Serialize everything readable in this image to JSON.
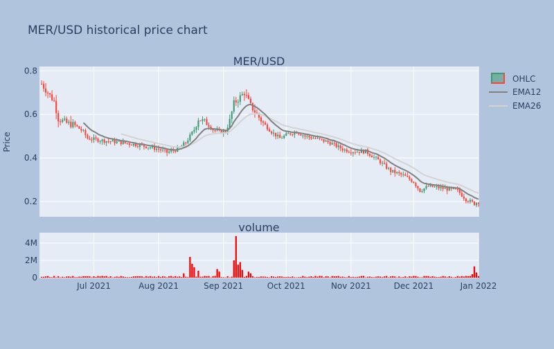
{
  "page": {
    "title": "MER/USD historical price chart"
  },
  "chart_data": [
    {
      "type": "candlestick",
      "title": "MER/USD",
      "ylabel": "Price",
      "xlabel": "",
      "x_range": [
        "2021-06-05",
        "2022-01-01"
      ],
      "ylim": [
        0.13,
        0.82
      ],
      "y_ticks": [
        0.2,
        0.4,
        0.6,
        0.8
      ],
      "y_tick_labels": [
        "0.2",
        "0.4",
        "0.6",
        "0.8"
      ],
      "x_ticks": [
        "2021-07-01",
        "2021-08-01",
        "2021-09-01",
        "2021-10-01",
        "2021-11-01",
        "2021-12-01",
        "2022-01-01"
      ],
      "x_tick_labels": [
        "Jul 2021",
        "Aug 2021",
        "Sep 2021",
        "Oct 2021",
        "Nov 2021",
        "Dec 2021",
        "Jan 2022"
      ],
      "grid": true,
      "increasing_color": "#3d9970",
      "decreasing_color": "#ff4136",
      "series": [
        {
          "name": "OHLC",
          "color": "#3d9970"
        },
        {
          "name": "EMA12",
          "color": "#808080"
        },
        {
          "name": "EMA26",
          "color": "#d3d3d3"
        }
      ],
      "close_anchors": [
        [
          "2021-06-06",
          0.74
        ],
        [
          "2021-06-09",
          0.7
        ],
        [
          "2021-06-12",
          0.66
        ],
        [
          "2021-06-14",
          0.58
        ],
        [
          "2021-06-18",
          0.56
        ],
        [
          "2021-06-22",
          0.55
        ],
        [
          "2021-06-26",
          0.52
        ],
        [
          "2021-06-28",
          0.49
        ],
        [
          "2021-07-05",
          0.48
        ],
        [
          "2021-07-15",
          0.47
        ],
        [
          "2021-07-25",
          0.455
        ],
        [
          "2021-08-01",
          0.44
        ],
        [
          "2021-08-05",
          0.425
        ],
        [
          "2021-08-10",
          0.44
        ],
        [
          "2021-08-14",
          0.47
        ],
        [
          "2021-08-18",
          0.53
        ],
        [
          "2021-08-20",
          0.58
        ],
        [
          "2021-08-24",
          0.56
        ],
        [
          "2021-08-27",
          0.53
        ],
        [
          "2021-08-30",
          0.52
        ],
        [
          "2021-09-02",
          0.52
        ],
        [
          "2021-09-04",
          0.57
        ],
        [
          "2021-09-06",
          0.65
        ],
        [
          "2021-09-08",
          0.67
        ],
        [
          "2021-09-11",
          0.7
        ],
        [
          "2021-09-14",
          0.64
        ],
        [
          "2021-09-17",
          0.6
        ],
        [
          "2021-09-20",
          0.56
        ],
        [
          "2021-09-24",
          0.52
        ],
        [
          "2021-09-28",
          0.49
        ],
        [
          "2021-10-02",
          0.51
        ],
        [
          "2021-10-06",
          0.52
        ],
        [
          "2021-10-10",
          0.5
        ],
        [
          "2021-10-15",
          0.49
        ],
        [
          "2021-10-22",
          0.47
        ],
        [
          "2021-10-28",
          0.44
        ],
        [
          "2021-11-01",
          0.43
        ],
        [
          "2021-11-08",
          0.43
        ],
        [
          "2021-11-14",
          0.39
        ],
        [
          "2021-11-20",
          0.34
        ],
        [
          "2021-11-26",
          0.32
        ],
        [
          "2021-12-01",
          0.29
        ],
        [
          "2021-12-04",
          0.25
        ],
        [
          "2021-12-08",
          0.27
        ],
        [
          "2021-12-15",
          0.26
        ],
        [
          "2021-12-22",
          0.25
        ],
        [
          "2021-12-26",
          0.21
        ],
        [
          "2021-12-30",
          0.19
        ],
        [
          "2022-01-01",
          0.2
        ]
      ]
    },
    {
      "type": "bar",
      "title": "volume",
      "ylabel": "",
      "ylim": [
        0,
        5200000
      ],
      "y_ticks": [
        0,
        2000000,
        4000000
      ],
      "y_tick_labels": [
        "0",
        "2M",
        "4M"
      ],
      "color": "#ff0000",
      "spikes": [
        [
          "2021-08-16",
          2400000
        ],
        [
          "2021-08-17",
          1600000
        ],
        [
          "2021-08-18",
          1200000
        ],
        [
          "2021-08-13",
          500000
        ],
        [
          "2021-08-20",
          800000
        ],
        [
          "2021-08-29",
          1000000
        ],
        [
          "2021-08-30",
          700000
        ],
        [
          "2021-09-06",
          2000000
        ],
        [
          "2021-09-07",
          4800000
        ],
        [
          "2021-09-08",
          1500000
        ],
        [
          "2021-09-09",
          1800000
        ],
        [
          "2021-09-10",
          900000
        ],
        [
          "2021-09-13",
          700000
        ],
        [
          "2021-09-14",
          500000
        ],
        [
          "2021-12-30",
          1300000
        ],
        [
          "2021-12-29",
          400000
        ],
        [
          "2021-12-31",
          600000
        ]
      ],
      "baseline_volume": 120000
    }
  ],
  "legend": {
    "items": [
      {
        "label": "OHLC",
        "color": "#3d9970"
      },
      {
        "label": "EMA12",
        "color": "#808080"
      },
      {
        "label": "EMA26",
        "color": "#d3d3d3"
      }
    ]
  }
}
